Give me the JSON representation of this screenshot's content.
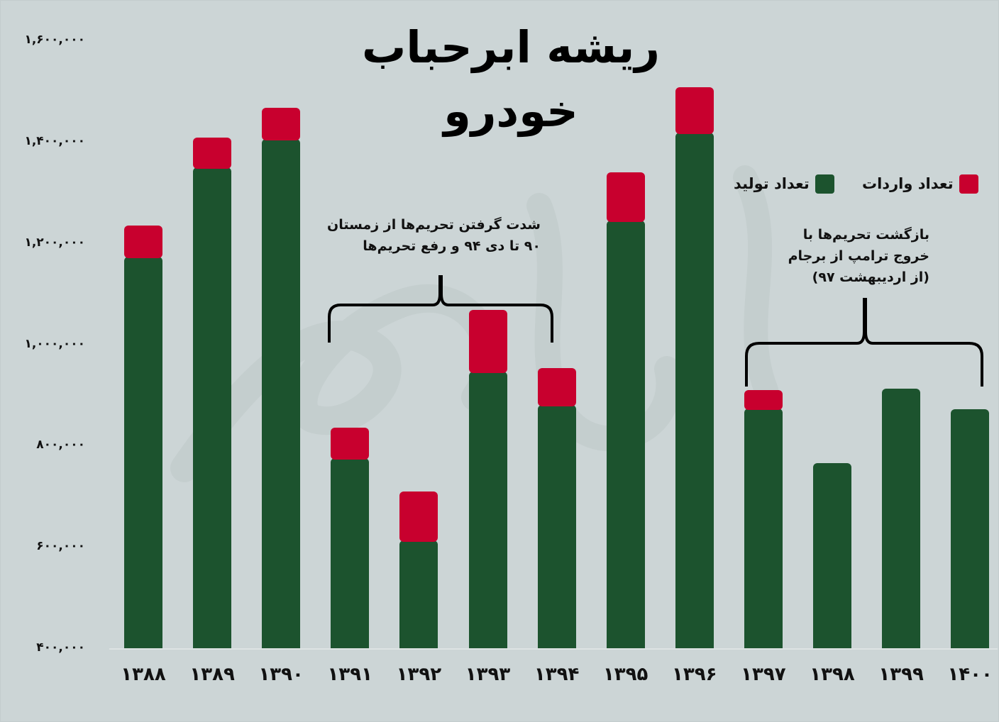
{
  "title": "ریشه ابرحباب خودرو",
  "colors": {
    "background": "#ccd5d6",
    "production": "#1c532e",
    "imports": "#c8002e",
    "text": "#111111"
  },
  "legend": [
    {
      "label": "تعداد واردات",
      "color": "#c8002e"
    },
    {
      "label": "تعداد تولید",
      "color": "#1c532e"
    }
  ],
  "y_axis": {
    "ticks": [
      "۱,۶۰۰,۰۰۰",
      "۱,۴۰۰,۰۰۰",
      "۱,۲۰۰,۰۰۰",
      "۱,۰۰۰,۰۰۰",
      "۸۰۰,۰۰۰",
      "۶۰۰,۰۰۰",
      "۴۰۰,۰۰۰"
    ]
  },
  "x_axis": {
    "labels": [
      "۱۳۸۸",
      "۱۳۸۹",
      "۱۳۹۰",
      "۱۳۹۱",
      "۱۳۹۲",
      "۱۳۹۳",
      "۱۳۹۴",
      "۱۳۹۵",
      "۱۳۹۶",
      "۱۳۹۷",
      "۱۳۹۸",
      "۱۳۹۹",
      "۱۴۰۰"
    ]
  },
  "annotations": [
    {
      "id": "sanctions-intensified",
      "line1": "شدت گرفتن تحریم‌ها از زمستان",
      "line2": "۹۰ تا دی ۹۴ و رفع تحریم‌ها",
      "spans": [
        "۱۳۹۱",
        "۱۳۹۴"
      ]
    },
    {
      "id": "sanctions-returned",
      "line1": "بازگشت تحریم‌ها با",
      "line2": "خروج ترامپ از برجام",
      "line3": "(از اردیبهشت ۹۷)",
      "spans": [
        "۱۳۹۷",
        "۱۴۰۰"
      ]
    }
  ],
  "chart_data": {
    "type": "bar",
    "stacked": true,
    "title": "ریشه ابرحباب خودرو",
    "xlabel": "",
    "ylabel": "",
    "categories": [
      "1388",
      "1389",
      "1390",
      "1391",
      "1392",
      "1393",
      "1394",
      "1395",
      "1396",
      "1397",
      "1398",
      "1399",
      "1400"
    ],
    "series": [
      {
        "name": "تعداد تولید",
        "color": "#1c532e",
        "values": [
          1173000,
          1349000,
          1406000,
          775000,
          613000,
          946000,
          880000,
          1244000,
          1418000,
          873000,
          766000,
          912000,
          872000
        ]
      },
      {
        "name": "تعداد واردات",
        "color": "#c8002e",
        "values": [
          61000,
          59000,
          61000,
          61000,
          96000,
          122000,
          73000,
          95000,
          89000,
          36000,
          0,
          0,
          0
        ]
      }
    ],
    "totals": [
      1234000,
      1408000,
      1467000,
      836000,
      709000,
      1068000,
      953000,
      1339000,
      1507000,
      909000,
      766000,
      912000,
      872000
    ],
    "ylim": [
      400000,
      1600000
    ],
    "yticks": [
      400000,
      600000,
      800000,
      1000000,
      1200000,
      1400000,
      1600000
    ],
    "grid": false,
    "legend_position": "top-right",
    "annotations": [
      {
        "text": "شدت گرفتن تحریم‌ها از زمستان ۹۰ تا دی ۹۴ و رفع تحریم‌ها",
        "range": [
          "1391",
          "1394"
        ]
      },
      {
        "text": "بازگشت تحریم‌ها با خروج ترامپ از برجام (از اردیبهشت ۹۷)",
        "range": [
          "1397",
          "1400"
        ]
      }
    ]
  }
}
